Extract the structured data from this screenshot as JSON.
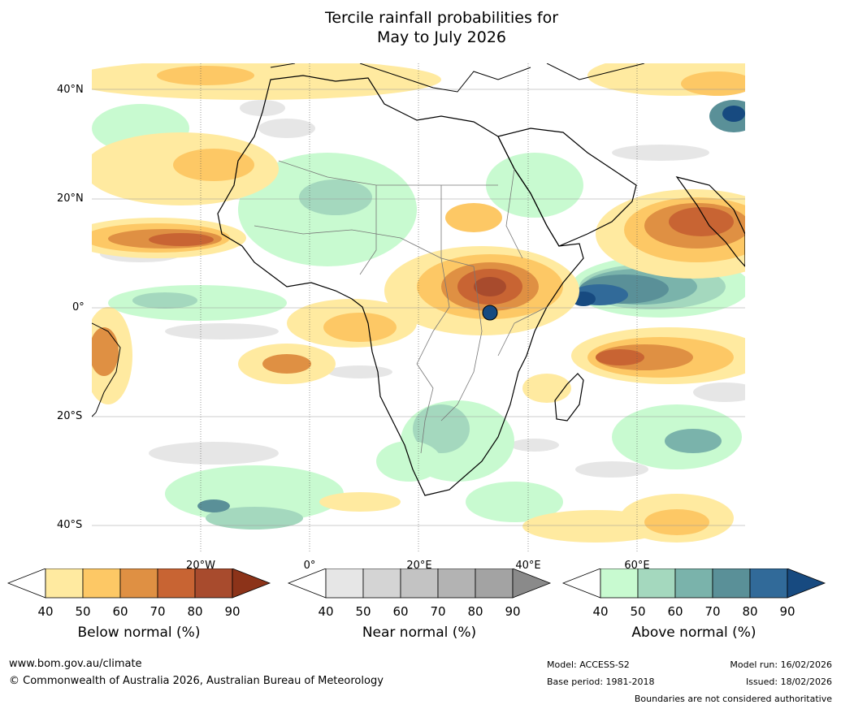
{
  "title_line1": "Tercile rainfall probabilities for",
  "title_line2": "May to July 2026",
  "lat_labels": [
    "40°N",
    "20°N",
    "0°",
    "20°S",
    "40°S"
  ],
  "lon_labels": [
    "20°W",
    "0°",
    "20°E",
    "40°E",
    "60°E"
  ],
  "colorbars": [
    {
      "name": "Below normal (%)",
      "ticks": [
        "40",
        "50",
        "60",
        "70",
        "80",
        "90"
      ],
      "colors": [
        "#ffffff",
        "#ffeaa0",
        "#fdc865",
        "#df9043",
        "#c86433",
        "#a84b2d",
        "#8c3319"
      ]
    },
    {
      "name": "Near normal (%)",
      "ticks": [
        "40",
        "50",
        "60",
        "70",
        "80",
        "90"
      ],
      "colors": [
        "#ffffff",
        "#e6e6e6",
        "#d4d4d4",
        "#c3c3c3",
        "#b3b3b3",
        "#a3a3a3",
        "#8a8a8a"
      ]
    },
    {
      "name": "Above normal (%)",
      "ticks": [
        "40",
        "50",
        "60",
        "70",
        "80",
        "90"
      ],
      "colors": [
        "#ffffff",
        "#c8fad0",
        "#a4d8be",
        "#7ab3ab",
        "#5a9098",
        "#316a99",
        "#174a80"
      ]
    }
  ],
  "footer": {
    "url": "www.bom.gov.au/climate",
    "copyright": "© Commonwealth of Australia 2026, Australian Bureau of Meteorology",
    "model": "Model: ACCESS-S2",
    "base_period": "Base period: 1981-2018",
    "model_run": "Model run: 16/02/2026",
    "issued": "Issued: 18/02/2026",
    "boundaries": "Boundaries are not considered authoritative"
  }
}
